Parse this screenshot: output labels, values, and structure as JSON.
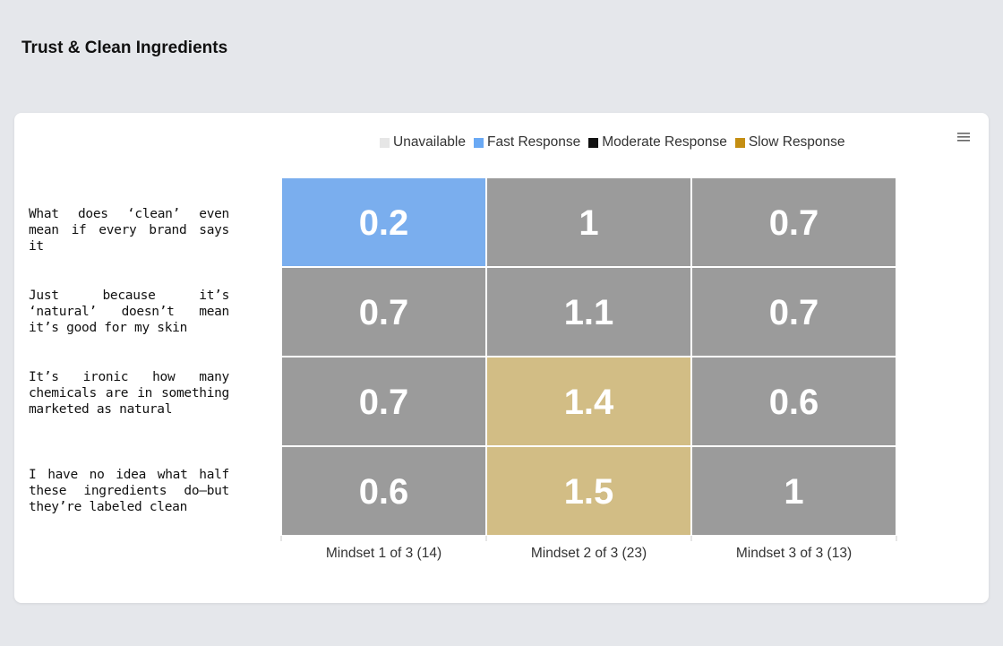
{
  "page": {
    "title": "Trust & Clean Ingredients"
  },
  "legend": [
    {
      "label": "Unavailable",
      "color": "#e6e6e6"
    },
    {
      "label": "Fast Response",
      "color": "#6aa9f4"
    },
    {
      "label": "Moderate Response",
      "color": "#111111"
    },
    {
      "label": "Slow Response",
      "color": "#c48e12"
    }
  ],
  "chart_data": {
    "type": "heatmap",
    "title": "Trust & Clean Ingredients",
    "rows": [
      "What does ‘clean’ even mean if every brand says it",
      "Just because it’s ‘natural’ doesn’t mean it’s good for my skin",
      "It’s ironic how many chemicals are in something marketed as natural",
      "I have no idea what half these ingredients do—but they’re labeled clean"
    ],
    "columns": [
      "Mindset 1 of 3 (14)",
      "Mindset 2 of 3 (23)",
      "Mindset 3 of 3 (13)"
    ],
    "values": [
      [
        0.2,
        1,
        0.7
      ],
      [
        0.7,
        1.1,
        0.7
      ],
      [
        0.7,
        1.4,
        0.6
      ],
      [
        0.6,
        1.5,
        1
      ]
    ],
    "categories": [
      [
        "Fast Response",
        "Moderate Response",
        "Moderate Response"
      ],
      [
        "Moderate Response",
        "Moderate Response",
        "Moderate Response"
      ],
      [
        "Moderate Response",
        "Slow Response",
        "Moderate Response"
      ],
      [
        "Moderate Response",
        "Slow Response",
        "Moderate Response"
      ]
    ],
    "cell_colors": {
      "Fast Response": "#7aaeee",
      "Moderate Response": "#9b9b9b",
      "Slow Response": "#d2bd85"
    }
  }
}
